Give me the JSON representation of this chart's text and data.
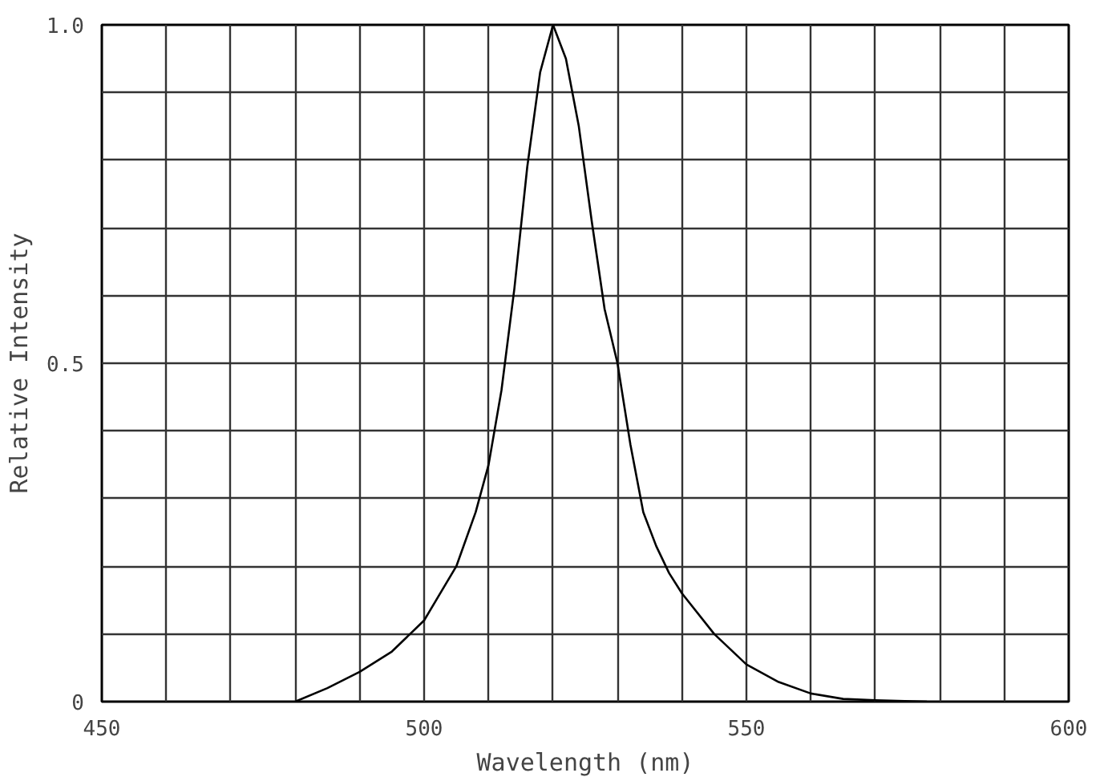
{
  "chart_data": {
    "type": "line",
    "xlabel": "Wavelength (nm)",
    "ylabel": "Relative Intensity",
    "x": [
      480,
      485,
      490,
      495,
      500,
      505,
      508,
      510,
      512,
      514,
      516,
      518,
      520,
      522,
      524,
      526,
      528,
      530,
      532,
      534,
      536,
      538,
      540,
      545,
      550,
      555,
      560,
      565,
      570,
      578
    ],
    "series": [
      {
        "color": "#000000",
        "values": [
          0,
          0.02,
          0.044,
          0.074,
          0.12,
          0.2,
          0.28,
          0.35,
          0.46,
          0.61,
          0.79,
          0.93,
          1.0,
          0.95,
          0.85,
          0.71,
          0.58,
          0.5,
          0.38,
          0.28,
          0.23,
          0.19,
          0.16,
          0.1,
          0.055,
          0.029,
          0.012,
          0.004,
          0.002,
          0
        ]
      }
    ],
    "xlim": [
      450,
      600
    ],
    "ylim": [
      0,
      1
    ],
    "xticks": [
      450,
      {
        "value": 460,
        "label": null
      },
      {
        "value": 470,
        "label": null
      },
      {
        "value": 480,
        "label": null
      },
      {
        "value": 490,
        "label": null
      },
      500,
      {
        "value": 510,
        "label": null
      },
      {
        "value": 520,
        "label": null
      },
      {
        "value": 530,
        "label": null
      },
      {
        "value": 540,
        "label": null
      },
      550,
      {
        "value": 560,
        "label": null
      },
      {
        "value": 570,
        "label": null
      },
      {
        "value": 580,
        "label": null
      },
      {
        "value": 590,
        "label": null
      },
      600
    ],
    "yticks": [
      0,
      {
        "value": 0.1,
        "label": null
      },
      {
        "value": 0.2,
        "label": null
      },
      {
        "value": 0.3,
        "label": null
      },
      {
        "value": 0.4,
        "label": null
      },
      0.5,
      {
        "value": 0.6,
        "label": null
      },
      {
        "value": 0.7,
        "label": null
      },
      {
        "value": 0.8,
        "label": null
      },
      {
        "value": 0.9,
        "label": null
      },
      {
        "value": 1,
        "label": "1.0"
      }
    ],
    "grid": true,
    "marker": "none",
    "line_style": "solid"
  }
}
